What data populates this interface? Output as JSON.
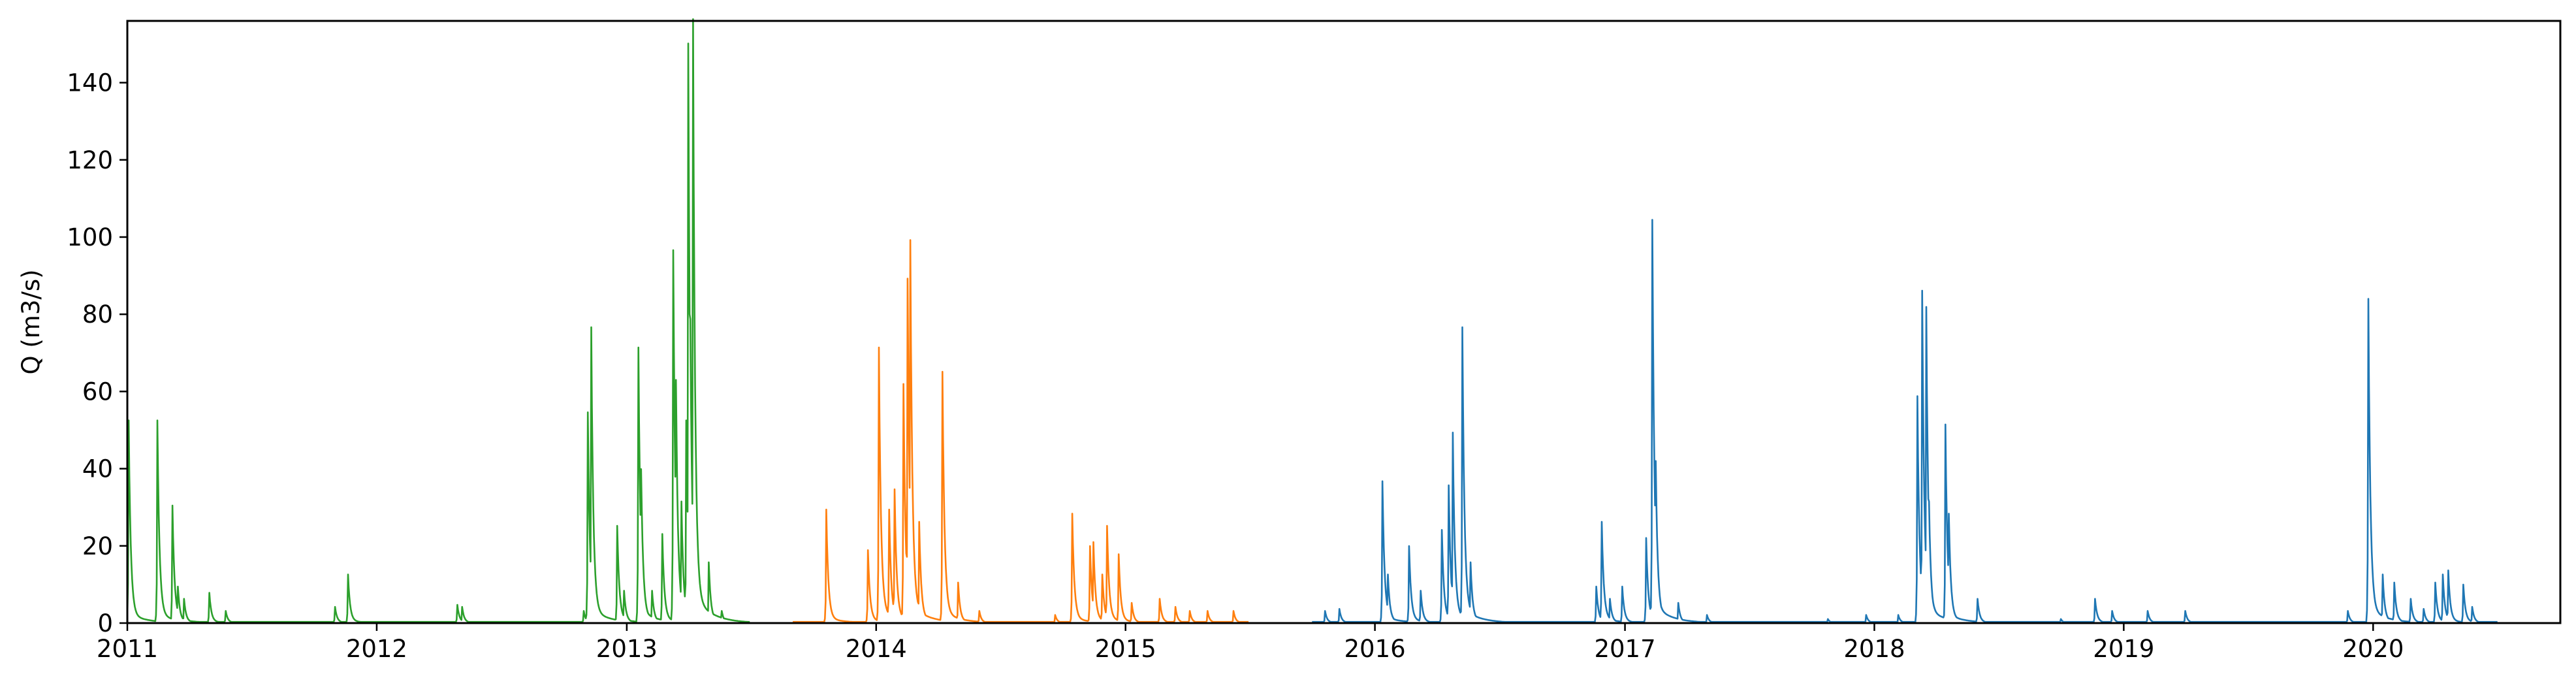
{
  "chart_data": {
    "type": "line",
    "title": "",
    "xlabel": "",
    "ylabel": "Q (m3/s)",
    "xlim": [
      "2011-01-01",
      "2020-10-01"
    ],
    "ylim": [
      0,
      156
    ],
    "grid": false,
    "x_ticks": [
      {
        "value": "2011-01-01",
        "label": "2011"
      },
      {
        "value": "2012-01-01",
        "label": "2012"
      },
      {
        "value": "2013-01-01",
        "label": "2013"
      },
      {
        "value": "2014-01-01",
        "label": "2014"
      },
      {
        "value": "2015-01-01",
        "label": "2015"
      },
      {
        "value": "2016-01-01",
        "label": "2016"
      },
      {
        "value": "2017-01-01",
        "label": "2017"
      },
      {
        "value": "2018-01-01",
        "label": "2018"
      },
      {
        "value": "2019-01-01",
        "label": "2019"
      },
      {
        "value": "2020-01-01",
        "label": "2020"
      }
    ],
    "y_ticks": [
      {
        "value": 0,
        "label": "0"
      },
      {
        "value": 20,
        "label": "20"
      },
      {
        "value": 40,
        "label": "40"
      },
      {
        "value": 60,
        "label": "60"
      },
      {
        "value": 80,
        "label": "80"
      },
      {
        "value": 100,
        "label": "100"
      },
      {
        "value": 120,
        "label": "120"
      },
      {
        "value": 140,
        "label": "140"
      }
    ],
    "series": [
      {
        "color": "#2ca02c",
        "base": 0.3,
        "start": "2011-01-01",
        "end": "2013-06-30",
        "peaks": [
          [
            "2011-01-03",
            50
          ],
          [
            "2011-01-06",
            12
          ],
          [
            "2011-02-14",
            50
          ],
          [
            "2011-03-08",
            29
          ],
          [
            "2011-03-16",
            9
          ],
          [
            "2011-03-25",
            6
          ],
          [
            "2011-05-01",
            7.5
          ],
          [
            "2011-05-25",
            3
          ],
          [
            "2011-11-01",
            4
          ],
          [
            "2011-11-20",
            12
          ],
          [
            "2012-04-28",
            4.5
          ],
          [
            "2012-05-05",
            4
          ],
          [
            "2012-10-30",
            3
          ],
          [
            "2012-11-05",
            52
          ],
          [
            "2012-11-10",
            73
          ],
          [
            "2012-11-14",
            10
          ],
          [
            "2012-12-18",
            24
          ],
          [
            "2012-12-28",
            8
          ],
          [
            "2013-01-18",
            68
          ],
          [
            "2013-01-22",
            38
          ],
          [
            "2013-02-07",
            8
          ],
          [
            "2013-02-22",
            22
          ],
          [
            "2013-03-10",
            92
          ],
          [
            "2013-03-14",
            60
          ],
          [
            "2013-03-22",
            30
          ],
          [
            "2013-03-29",
            50
          ],
          [
            "2013-04-01",
            143
          ],
          [
            "2013-04-04",
            75
          ],
          [
            "2013-04-08",
            149
          ],
          [
            "2013-04-12",
            40
          ],
          [
            "2013-05-01",
            15
          ],
          [
            "2013-05-20",
            3
          ]
        ]
      },
      {
        "color": "#ff7f0e",
        "base": 0.3,
        "start": "2013-09-01",
        "end": "2015-06-30",
        "peaks": [
          [
            "2013-10-20",
            28
          ],
          [
            "2013-12-20",
            18
          ],
          [
            "2014-01-05",
            68
          ],
          [
            "2014-01-20",
            28
          ],
          [
            "2014-01-28",
            33
          ],
          [
            "2014-02-10",
            59
          ],
          [
            "2014-02-16",
            85
          ],
          [
            "2014-02-20",
            94.5
          ],
          [
            "2014-03-05",
            25
          ],
          [
            "2014-04-08",
            62
          ],
          [
            "2014-05-01",
            10
          ],
          [
            "2014-06-01",
            3
          ],
          [
            "2014-09-20",
            2
          ],
          [
            "2014-10-15",
            27
          ],
          [
            "2014-11-10",
            19
          ],
          [
            "2014-11-15",
            20
          ],
          [
            "2014-11-28",
            12
          ],
          [
            "2014-12-05",
            24
          ],
          [
            "2014-12-22",
            17
          ],
          [
            "2015-01-10",
            5
          ],
          [
            "2015-02-20",
            6
          ],
          [
            "2015-03-15",
            4
          ],
          [
            "2015-04-05",
            3
          ],
          [
            "2015-05-01",
            3
          ],
          [
            "2015-06-08",
            3
          ]
        ]
      },
      {
        "color": "#1f77b4",
        "base": 0.3,
        "start": "2015-10-01",
        "end": "2020-07-01",
        "peaks": [
          [
            "2015-10-20",
            3
          ],
          [
            "2015-11-10",
            3.5
          ],
          [
            "2016-01-12",
            35
          ],
          [
            "2016-01-20",
            12
          ],
          [
            "2016-02-20",
            19
          ],
          [
            "2016-03-08",
            8
          ],
          [
            "2016-04-08",
            23
          ],
          [
            "2016-04-18",
            34
          ],
          [
            "2016-04-24",
            47
          ],
          [
            "2016-05-08",
            73
          ],
          [
            "2016-05-20",
            15
          ],
          [
            "2016-11-20",
            9
          ],
          [
            "2016-11-28",
            25
          ],
          [
            "2016-12-10",
            6
          ],
          [
            "2016-12-28",
            9
          ],
          [
            "2017-02-01",
            21
          ],
          [
            "2017-02-10",
            99.5
          ],
          [
            "2017-02-15",
            40
          ],
          [
            "2017-03-20",
            5
          ],
          [
            "2017-05-01",
            2
          ],
          [
            "2017-10-25",
            1
          ],
          [
            "2017-12-20",
            2
          ],
          [
            "2018-02-05",
            2
          ],
          [
            "2018-03-05",
            56
          ],
          [
            "2018-03-12",
            82
          ],
          [
            "2018-03-18",
            78
          ],
          [
            "2018-03-22",
            30
          ],
          [
            "2018-04-15",
            49
          ],
          [
            "2018-04-20",
            27
          ],
          [
            "2018-06-01",
            6
          ],
          [
            "2018-10-01",
            1
          ],
          [
            "2018-11-20",
            6
          ],
          [
            "2018-12-15",
            3
          ],
          [
            "2019-02-05",
            3
          ],
          [
            "2019-04-01",
            3
          ],
          [
            "2019-11-25",
            3
          ],
          [
            "2019-12-25",
            80
          ],
          [
            "2020-01-15",
            12
          ],
          [
            "2020-02-01",
            10
          ],
          [
            "2020-02-25",
            6
          ],
          [
            "2020-03-15",
            3.5
          ],
          [
            "2020-04-01",
            10
          ],
          [
            "2020-04-12",
            12
          ],
          [
            "2020-04-20",
            13
          ],
          [
            "2020-05-12",
            9.5
          ],
          [
            "2020-05-25",
            4
          ]
        ]
      }
    ]
  }
}
